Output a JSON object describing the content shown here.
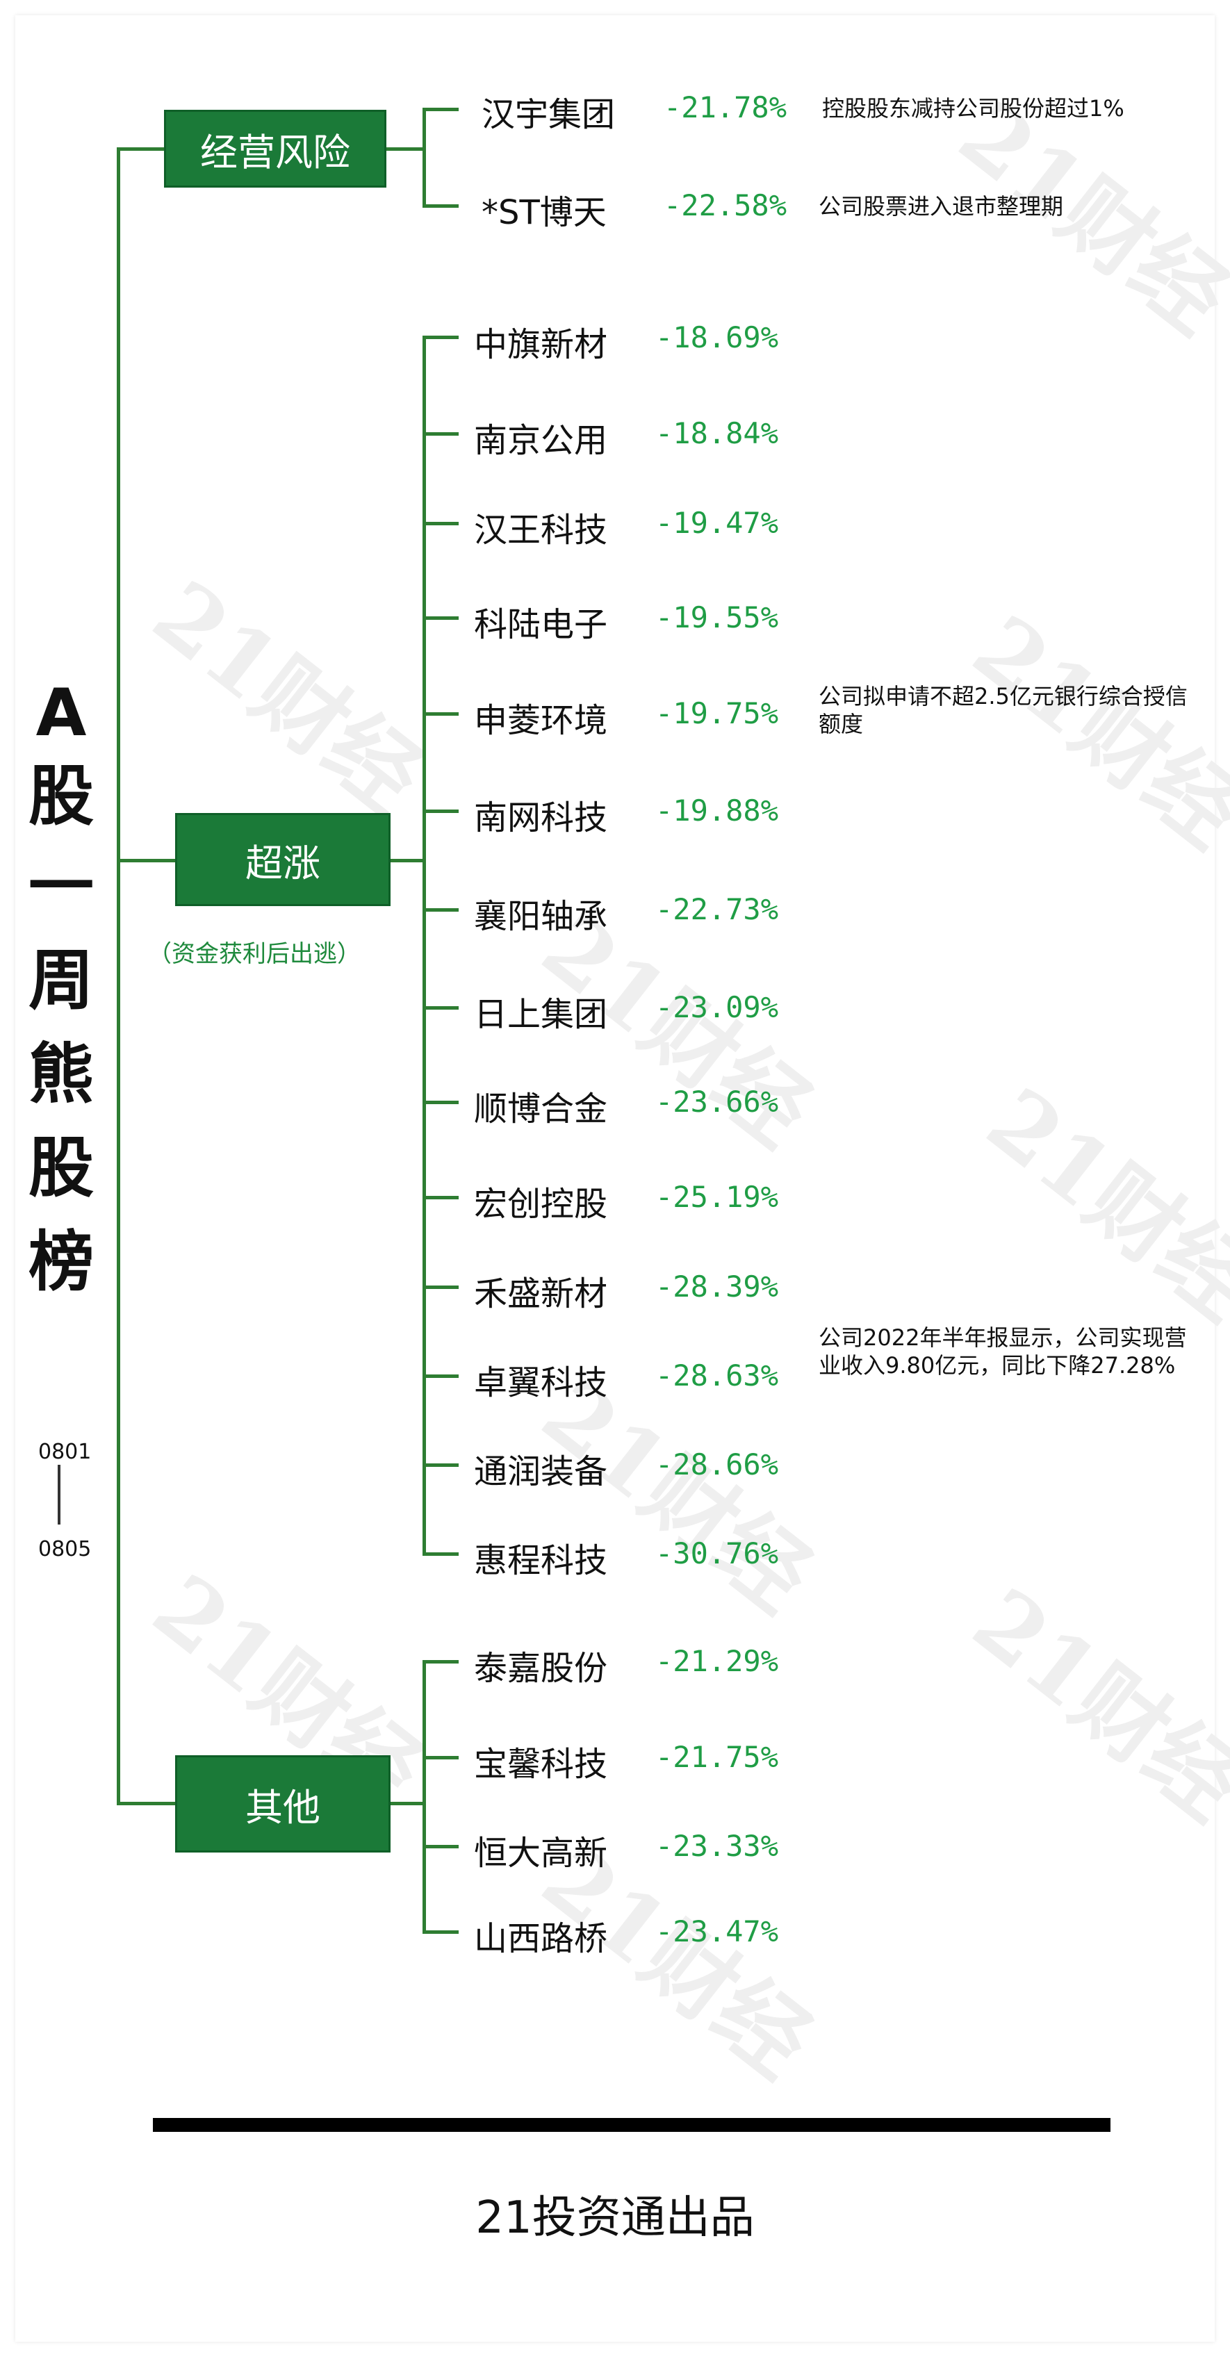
{
  "title": "A股一周熊股榜",
  "title_chars": [
    "A",
    "股",
    "一",
    "周",
    "熊",
    "股",
    "榜"
  ],
  "date_from": "0801",
  "date_to": "0805",
  "watermark_text": "21财经",
  "colors": {
    "accent": "#1b7a38",
    "value": "#1f9d45",
    "line": "#2e7d32"
  },
  "categories": [
    {
      "label": "经营风险",
      "sublabel": "",
      "items": [
        {
          "name": "汉宇集团",
          "value": "-21.78%",
          "note": "控股股东减持公司股份超过1%"
        },
        {
          "name": "*ST博天",
          "value": "-22.58%",
          "note": "公司股票进入退市整理期"
        }
      ]
    },
    {
      "label": "超涨",
      "sublabel": "（资金获利后出逃）",
      "items": [
        {
          "name": "中旗新材",
          "value": "-18.69%",
          "note": ""
        },
        {
          "name": "南京公用",
          "value": "-18.84%",
          "note": ""
        },
        {
          "name": "汉王科技",
          "value": "-19.47%",
          "note": ""
        },
        {
          "name": "科陆电子",
          "value": "-19.55%",
          "note": ""
        },
        {
          "name": "申菱环境",
          "value": "-19.75%",
          "note": "公司拟申请不超2.5亿元银行综合授信额度"
        },
        {
          "name": "南网科技",
          "value": "-19.88%",
          "note": ""
        },
        {
          "name": "襄阳轴承",
          "value": "-22.73%",
          "note": ""
        },
        {
          "name": "日上集团",
          "value": "-23.09%",
          "note": ""
        },
        {
          "name": "顺博合金",
          "value": "-23.66%",
          "note": ""
        },
        {
          "name": "宏创控股",
          "value": "-25.19%",
          "note": ""
        },
        {
          "name": "禾盛新材",
          "value": "-28.39%",
          "note": ""
        },
        {
          "name": "卓翼科技",
          "value": "-28.63%",
          "note": "公司2022年半年报显示，公司实现营业收入9.80亿元，同比下降27.28%"
        },
        {
          "name": "通润装备",
          "value": "-28.66%",
          "note": ""
        },
        {
          "name": "惠程科技",
          "value": "-30.76%",
          "note": ""
        }
      ]
    },
    {
      "label": "其他",
      "sublabel": "",
      "items": [
        {
          "name": "泰嘉股份",
          "value": "-21.29%",
          "note": ""
        },
        {
          "name": "宝馨科技",
          "value": "-21.75%",
          "note": ""
        },
        {
          "name": "恒大高新",
          "value": "-23.33%",
          "note": ""
        },
        {
          "name": "山西路桥",
          "value": "-23.47%",
          "note": ""
        }
      ]
    }
  ],
  "footer": "21投资通出品"
}
